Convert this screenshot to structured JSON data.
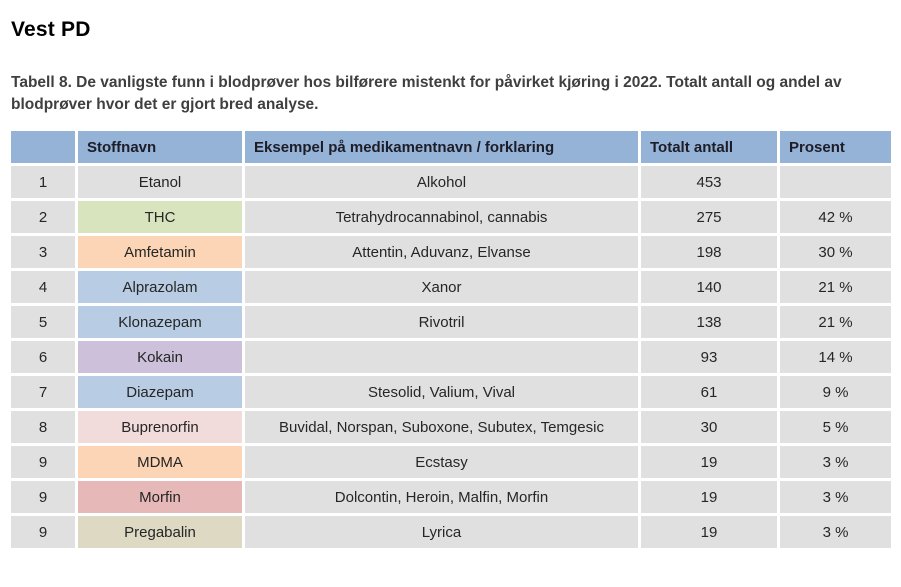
{
  "page": {
    "title": "Vest PD",
    "caption": "Tabell 8. De vanligste funn i blodprøver hos bilførere mistenkt for påvirket kjøring i 2022. Totalt antall og andel av blodprøver hvor det er gjort bred analyse."
  },
  "table": {
    "headers": {
      "rank": "",
      "stoffnavn": "Stoffnavn",
      "eksempel": "Eksempel på medikamentnavn / forklaring",
      "antall": "Totalt antall",
      "prosent": "Prosent"
    },
    "colors": {
      "header_bg": "#95B3D7",
      "default_cell_bg": "#E0E0E0",
      "text": "#262626"
    },
    "rows": [
      {
        "rank": "1",
        "stoffnavn": "Etanol",
        "eksempel": "Alkohol",
        "antall": "453",
        "prosent": "",
        "stoffnavn_bg": "#E0E0E0"
      },
      {
        "rank": "2",
        "stoffnavn": "THC",
        "eksempel": "Tetrahydrocannabinol, cannabis",
        "antall": "275",
        "prosent": "42 %",
        "stoffnavn_bg": "#D7E4BD"
      },
      {
        "rank": "3",
        "stoffnavn": "Amfetamin",
        "eksempel": "Attentin, Aduvanz, Elvanse",
        "antall": "198",
        "prosent": "30 %",
        "stoffnavn_bg": "#FBD5B5"
      },
      {
        "rank": "4",
        "stoffnavn": "Alprazolam",
        "eksempel": "Xanor",
        "antall": "140",
        "prosent": "21 %",
        "stoffnavn_bg": "#B8CCE4"
      },
      {
        "rank": "5",
        "stoffnavn": "Klonazepam",
        "eksempel": "Rivotril",
        "antall": "138",
        "prosent": "21 %",
        "stoffnavn_bg": "#B8CCE4"
      },
      {
        "rank": "6",
        "stoffnavn": "Kokain",
        "eksempel": "",
        "antall": "93",
        "prosent": "14 %",
        "stoffnavn_bg": "#CCC0DA"
      },
      {
        "rank": "7",
        "stoffnavn": "Diazepam",
        "eksempel": "Stesolid, Valium, Vival",
        "antall": "61",
        "prosent": "9 %",
        "stoffnavn_bg": "#B8CCE4"
      },
      {
        "rank": "8",
        "stoffnavn": "Buprenorfin",
        "eksempel": "Buvidal, Norspan, Suboxone, Subutex, Temgesic",
        "antall": "30",
        "prosent": "5 %",
        "stoffnavn_bg": "#F2DCDB"
      },
      {
        "rank": "9",
        "stoffnavn": "MDMA",
        "eksempel": "Ecstasy",
        "antall": "19",
        "prosent": "3 %",
        "stoffnavn_bg": "#FBD5B5"
      },
      {
        "rank": "9",
        "stoffnavn": "Morfin",
        "eksempel": "Dolcontin, Heroin, Malfin, Morfin",
        "antall": "19",
        "prosent": "3 %",
        "stoffnavn_bg": "#E6B9B8"
      },
      {
        "rank": "9",
        "stoffnavn": "Pregabalin",
        "eksempel": "Lyrica",
        "antall": "19",
        "prosent": "3 %",
        "stoffnavn_bg": "#DDD9C3"
      }
    ]
  }
}
